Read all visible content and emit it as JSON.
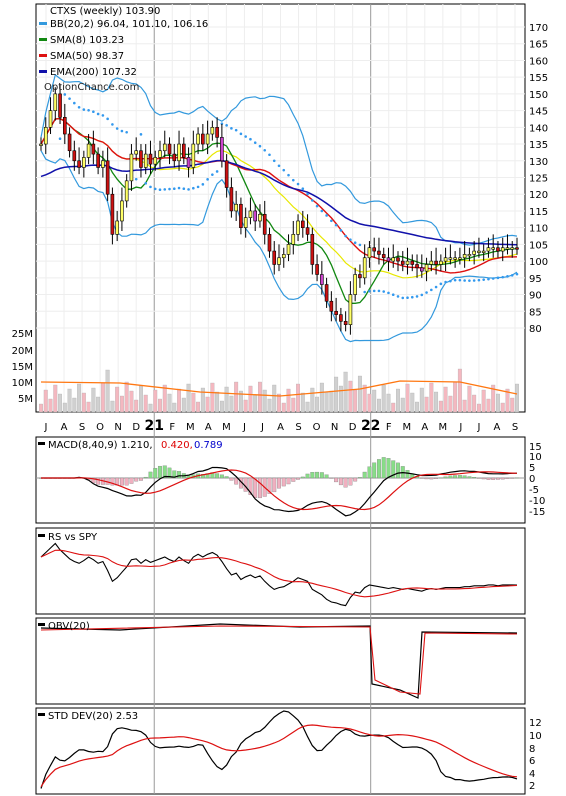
{
  "title": "CTXS (weekly) 103.90",
  "watermark": "OptionChance.com",
  "legend": [
    {
      "key": "bb",
      "label": "BB(20,2) 96.04, 101.10, 106.16",
      "color": "#3399dd"
    },
    {
      "key": "sma8",
      "label": "SMA(8) 103.23",
      "color": "#118811"
    },
    {
      "key": "sma50",
      "label": "SMA(50) 98.37",
      "color": "#dd1111"
    },
    {
      "key": "ema200",
      "label": "EMA(200) 107.32",
      "color": "#1111aa"
    }
  ],
  "colors": {
    "up_candle": "#ffff66",
    "down_candle": "#cc1111",
    "purple_candle": "#cc44cc",
    "bb": "#3399dd",
    "bb_mid": "#e8e800",
    "sma8": "#118811",
    "sma50": "#dd1111",
    "ema200": "#1111aa",
    "vol_up": "#f4b8c0",
    "vol_down": "#d0d0d0",
    "vol_avg": "#ff7711",
    "hist_pos": "#88dd88",
    "hist_neg": "#f0b0c0",
    "macd_val1": "#dd0000",
    "macd_val2": "#0000cc",
    "psar": "#3399ee"
  },
  "x_labels": [
    "J",
    "A",
    "S",
    "O",
    "N",
    "D",
    "21",
    "F",
    "M",
    "A",
    "M",
    "J",
    "J",
    "A",
    "S",
    "O",
    "N",
    "D",
    "22",
    "F",
    "M",
    "A",
    "M",
    "J",
    "J",
    "A",
    "S"
  ],
  "price_axis": [
    170,
    165,
    160,
    155,
    150,
    145,
    140,
    135,
    130,
    125,
    120,
    115,
    110,
    105,
    100,
    95,
    90,
    85,
    80
  ],
  "volume_axis": [
    "25M",
    "20M",
    "15M",
    "10M",
    "5M"
  ],
  "macd": {
    "label": "MACD(8,40,9) 1.210,",
    "value2": "0.420,",
    "value3": "0.789",
    "axis": [
      "15",
      "10",
      "5",
      "0",
      "-5",
      "-10",
      "-15"
    ]
  },
  "rs": {
    "label": "RS vs SPY"
  },
  "obv": {
    "label": "OBV(20)"
  },
  "std": {
    "label": "STD DEV(20) 2.53",
    "axis": [
      "12",
      "10",
      "8",
      "6",
      "4",
      "2"
    ]
  },
  "chart_data": {
    "type": "candlestick",
    "title": "CTXS (weekly) 103.90",
    "x_range": [
      "2020-07",
      "2022-09"
    ],
    "price_ylim": [
      78,
      172
    ],
    "closes": [
      135,
      140,
      145,
      150,
      143,
      138,
      133,
      130,
      128,
      131,
      135,
      132,
      128,
      130,
      120,
      108,
      112,
      118,
      124,
      132,
      133,
      128,
      132,
      129,
      131,
      133,
      135,
      132,
      130,
      135,
      131,
      128,
      135,
      138,
      135,
      138,
      140,
      137,
      130,
      122,
      115,
      117,
      110,
      113,
      115,
      112,
      114,
      108,
      103,
      99,
      101,
      102,
      105,
      108,
      112,
      110,
      108,
      99,
      96,
      93,
      88,
      85,
      84,
      82,
      81,
      90,
      96,
      95,
      101,
      104,
      103,
      102,
      101,
      100,
      101,
      100,
      99,
      100,
      99,
      98,
      97,
      99,
      100,
      99,
      100,
      101,
      101,
      101,
      101,
      102,
      102,
      103,
      103,
      103,
      104,
      104,
      103,
      104,
      104,
      104,
      103.9
    ],
    "volume_avg_m": 7.5,
    "panels": [
      "MACD(8,40,9)",
      "RS vs SPY",
      "OBV(20)",
      "STD DEV(20)"
    ],
    "macd_values": [
      1.21,
      0.42,
      0.789
    ],
    "std_dev": 2.53
  }
}
